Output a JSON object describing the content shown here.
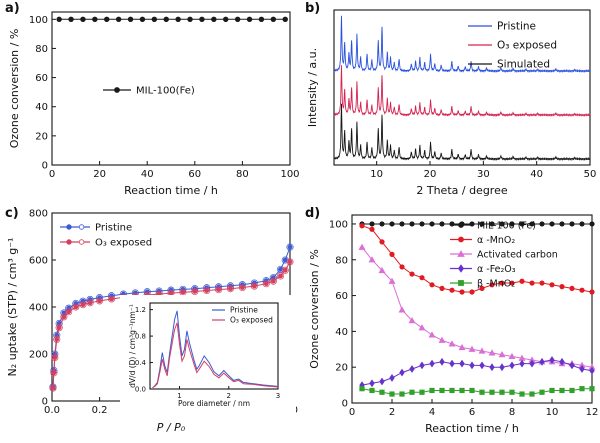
{
  "figure": {
    "background": "#ffffff"
  },
  "panels": {
    "a": {
      "label": "a)"
    },
    "b": {
      "label": "b)"
    },
    "c": {
      "label": "c)"
    },
    "d": {
      "label": "d)"
    }
  },
  "chart_data": [
    {
      "id": "a",
      "type": "scatter",
      "xlabel": "Reaction time / h",
      "ylabel": "Ozone conversion / %",
      "xlim": [
        0,
        100
      ],
      "ylim": [
        0,
        105
      ],
      "xticks": [
        0,
        20,
        40,
        60,
        80,
        100
      ],
      "yticks": [
        0,
        20,
        40,
        60,
        80,
        100
      ],
      "legend_position": "center",
      "series": [
        {
          "name": "MIL-100(Fe)",
          "color": "#1a1a1a",
          "marker": "circle",
          "x": [
            3,
            8,
            13,
            18,
            23,
            28,
            33,
            38,
            43,
            48,
            53,
            58,
            63,
            68,
            73,
            78,
            83,
            88,
            93,
            98
          ],
          "y": [
            100,
            100,
            100,
            100,
            100,
            100,
            100,
            100,
            100,
            100,
            100,
            100,
            100,
            100,
            100,
            100,
            100,
            100,
            100,
            100
          ]
        }
      ]
    },
    {
      "id": "b",
      "type": "line",
      "xlabel": "2 Theta / degree",
      "ylabel": "Intensity / a.u.",
      "xlim": [
        2,
        50
      ],
      "xticks": [
        10,
        20,
        30,
        40,
        50
      ],
      "legend_position": "top-right",
      "series": [
        {
          "name": "Pristine",
          "color": "#2a52de",
          "offset": 2,
          "scale": 1.0
        },
        {
          "name": "O₃ exposed",
          "color": "#d42552",
          "offset": 1,
          "scale": 0.9
        },
        {
          "name": "Simulated",
          "color": "#161616",
          "offset": 0,
          "scale": 1.0
        }
      ],
      "peaks_2theta_intensity": [
        [
          3.4,
          0.9
        ],
        [
          4.0,
          0.45
        ],
        [
          4.8,
          0.28
        ],
        [
          5.3,
          0.5
        ],
        [
          6.3,
          0.6
        ],
        [
          7.0,
          0.22
        ],
        [
          8.2,
          0.28
        ],
        [
          9.1,
          0.18
        ],
        [
          10.3,
          0.5
        ],
        [
          11.0,
          0.72
        ],
        [
          12.0,
          0.3
        ],
        [
          12.6,
          0.22
        ],
        [
          13.3,
          0.14
        ],
        [
          14.2,
          0.2
        ],
        [
          16.5,
          0.12
        ],
        [
          17.3,
          0.16
        ],
        [
          18.1,
          0.22
        ],
        [
          19.0,
          0.14
        ],
        [
          20.1,
          0.28
        ],
        [
          20.9,
          0.12
        ],
        [
          22.1,
          0.1
        ],
        [
          24.1,
          0.16
        ],
        [
          25.3,
          0.08
        ],
        [
          26.6,
          0.07
        ],
        [
          27.7,
          0.16
        ],
        [
          29.1,
          0.07
        ],
        [
          30.6,
          0.05
        ],
        [
          33.3,
          0.05
        ],
        [
          35.6,
          0.04
        ],
        [
          38.0,
          0.03
        ],
        [
          40.2,
          0.03
        ],
        [
          43.6,
          0.03
        ],
        [
          47.1,
          0.02
        ]
      ]
    },
    {
      "id": "c",
      "type": "line",
      "xlabel": "P / P₀",
      "ylabel": "N₂ uptake (STP) / cm³ g⁻¹",
      "xlim": [
        0,
        1.0
      ],
      "ylim": [
        0,
        800
      ],
      "xticks": [
        0.0,
        0.2,
        0.4,
        0.6,
        0.8,
        1.0
      ],
      "yticks": [
        0,
        200,
        400,
        600,
        800
      ],
      "legend_position": "top-left",
      "series": [
        {
          "name": "Pristine",
          "color": "#3c5bd4",
          "marker": "circle",
          "x": [
            0.004,
            0.008,
            0.012,
            0.02,
            0.03,
            0.05,
            0.07,
            0.1,
            0.13,
            0.16,
            0.2,
            0.25,
            0.3,
            0.35,
            0.4,
            0.45,
            0.5,
            0.55,
            0.6,
            0.65,
            0.7,
            0.75,
            0.8,
            0.85,
            0.9,
            0.93,
            0.96,
            0.98,
            1.0
          ],
          "y": [
            60,
            130,
            200,
            280,
            330,
            375,
            395,
            415,
            425,
            432,
            440,
            448,
            455,
            460,
            465,
            468,
            472,
            475,
            478,
            482,
            486,
            490,
            495,
            502,
            512,
            525,
            560,
            600,
            655
          ]
        },
        {
          "name": "O₃ exposed",
          "color": "#d44060",
          "marker": "circle",
          "x": [
            0.004,
            0.008,
            0.012,
            0.02,
            0.03,
            0.05,
            0.07,
            0.1,
            0.13,
            0.16,
            0.2,
            0.25,
            0.3,
            0.35,
            0.4,
            0.45,
            0.5,
            0.55,
            0.6,
            0.65,
            0.7,
            0.75,
            0.8,
            0.85,
            0.9,
            0.93,
            0.96,
            0.98,
            1.0
          ],
          "y": [
            55,
            120,
            185,
            262,
            312,
            358,
            380,
            400,
            410,
            418,
            426,
            434,
            441,
            446,
            451,
            455,
            459,
            462,
            466,
            470,
            474,
            478,
            483,
            489,
            499,
            510,
            532,
            556,
            592
          ]
        }
      ],
      "inset": {
        "xlabel": "Pore diameter / nm",
        "ylabel": "dV/d (D) / cm³g⁻¹nm⁻¹",
        "xlim": [
          0.4,
          3.0
        ],
        "ylim": [
          0,
          1.3
        ],
        "xticks": [
          1,
          2,
          3
        ],
        "yticks": [
          0.0,
          0.4,
          0.8,
          1.2
        ],
        "series": [
          {
            "name": "Pristine",
            "color": "#3c5bd4",
            "x": [
              0.45,
              0.5,
              0.55,
              0.6,
              0.65,
              0.7,
              0.75,
              0.8,
              0.9,
              0.95,
              1.0,
              1.05,
              1.1,
              1.15,
              1.2,
              1.3,
              1.35,
              1.4,
              1.5,
              1.6,
              1.7,
              1.8,
              1.9,
              2.0,
              2.1,
              2.2,
              2.3,
              2.5,
              2.7,
              3.0
            ],
            "y": [
              0.02,
              0.05,
              0.1,
              0.3,
              0.55,
              0.35,
              0.25,
              0.55,
              1.05,
              1.18,
              0.8,
              0.5,
              0.6,
              0.88,
              0.7,
              0.42,
              0.3,
              0.35,
              0.5,
              0.4,
              0.26,
              0.2,
              0.28,
              0.2,
              0.13,
              0.15,
              0.1,
              0.08,
              0.06,
              0.04
            ]
          },
          {
            "name": "O₃ exposed",
            "color": "#d44060",
            "x": [
              0.45,
              0.5,
              0.55,
              0.6,
              0.65,
              0.7,
              0.75,
              0.8,
              0.9,
              0.95,
              1.0,
              1.05,
              1.1,
              1.15,
              1.2,
              1.3,
              1.35,
              1.4,
              1.5,
              1.6,
              1.7,
              1.8,
              1.9,
              2.0,
              2.1,
              2.2,
              2.3,
              2.5,
              2.7,
              3.0
            ],
            "y": [
              0.02,
              0.04,
              0.08,
              0.25,
              0.45,
              0.3,
              0.2,
              0.48,
              0.9,
              1.0,
              0.68,
              0.42,
              0.5,
              0.75,
              0.6,
              0.36,
              0.25,
              0.3,
              0.42,
              0.34,
              0.22,
              0.17,
              0.24,
              0.17,
              0.11,
              0.13,
              0.08,
              0.07,
              0.05,
              0.03
            ]
          }
        ]
      }
    },
    {
      "id": "d",
      "type": "scatter",
      "xlabel": "Reaction time / h",
      "ylabel": "Ozone conversion / %",
      "xlim": [
        0,
        12
      ],
      "ylim": [
        0,
        105
      ],
      "xticks": [
        0,
        2,
        4,
        6,
        8,
        10,
        12
      ],
      "yticks": [
        0,
        20,
        40,
        60,
        80,
        100
      ],
      "legend_position": "top-right",
      "series": [
        {
          "name": "MIL-100 (Fe)",
          "color": "#1a1a1a",
          "marker": "circle",
          "x": [
            0.5,
            1,
            1.5,
            2,
            2.5,
            3,
            3.5,
            4,
            4.5,
            5,
            5.5,
            6,
            6.5,
            7,
            7.5,
            8,
            8.5,
            9,
            9.5,
            10,
            10.5,
            11,
            11.5,
            12
          ],
          "y": [
            100,
            100,
            100,
            100,
            100,
            100,
            100,
            100,
            100,
            100,
            100,
            100,
            100,
            100,
            100,
            100,
            100,
            100,
            100,
            100,
            100,
            100,
            100,
            100
          ]
        },
        {
          "name": "α -MnO₂",
          "color": "#e11b22",
          "marker": "circle",
          "x": [
            0.5,
            1,
            1.5,
            2,
            2.5,
            3,
            3.5,
            4,
            4.5,
            5,
            5.5,
            6,
            6.5,
            7,
            7.5,
            8,
            8.5,
            9,
            9.5,
            10,
            10.5,
            11,
            11.5,
            12
          ],
          "y": [
            99,
            97,
            90,
            83,
            76,
            72,
            70,
            66,
            64,
            63,
            62,
            62,
            64,
            66,
            67,
            67,
            68,
            67,
            67,
            66,
            65,
            64,
            63,
            62
          ]
        },
        {
          "name": "Activated carbon",
          "color": "#da70d6",
          "marker": "triangle",
          "x": [
            0.5,
            1,
            1.5,
            2,
            2.5,
            3,
            3.5,
            4,
            4.5,
            5,
            5.5,
            6,
            6.5,
            7,
            7.5,
            8,
            8.5,
            9,
            9.5,
            10,
            10.5,
            11,
            11.5,
            12
          ],
          "y": [
            87,
            80,
            74,
            68,
            52,
            46,
            42,
            38,
            35,
            33,
            31,
            30,
            29,
            28,
            27,
            26,
            25,
            24,
            23,
            23,
            22,
            22,
            21,
            20
          ]
        },
        {
          "name": "α -Fe₂O₃",
          "color": "#6633cc",
          "marker": "diamond",
          "x": [
            0.5,
            1,
            1.5,
            2,
            2.5,
            3,
            3.5,
            4,
            4.5,
            5,
            5.5,
            6,
            6.5,
            7,
            7.5,
            8,
            8.5,
            9,
            9.5,
            10,
            10.5,
            11,
            11.5,
            12
          ],
          "y": [
            10,
            11,
            12,
            14,
            17,
            19,
            21,
            22,
            23,
            22,
            22,
            21,
            21,
            20,
            20,
            21,
            22,
            22,
            23,
            24,
            23,
            21,
            19,
            18
          ]
        },
        {
          "name": "β -MnO₂",
          "color": "#33a02c",
          "marker": "square",
          "x": [
            0.5,
            1,
            1.5,
            2,
            2.5,
            3,
            3.5,
            4,
            4.5,
            5,
            5.5,
            6,
            6.5,
            7,
            7.5,
            8,
            8.5,
            9,
            9.5,
            10,
            10.5,
            11,
            11.5,
            12
          ],
          "y": [
            8,
            7,
            6,
            5,
            5,
            6,
            6,
            7,
            7,
            7,
            7,
            7,
            6,
            6,
            6,
            6,
            5,
            5,
            6,
            7,
            7,
            7,
            8,
            8
          ]
        }
      ]
    }
  ]
}
